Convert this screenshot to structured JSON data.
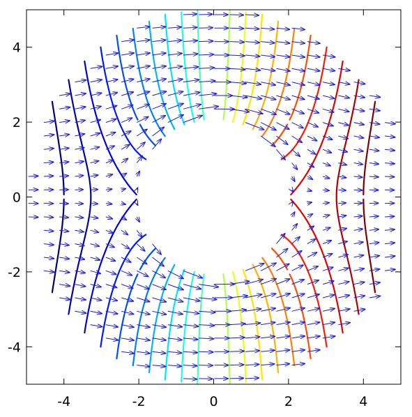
{
  "chart_data": {
    "type": "contour",
    "title": "",
    "xlabel": "",
    "ylabel": "",
    "xlim": [
      -5,
      5
    ],
    "ylim": [
      -5,
      5
    ],
    "grid": false,
    "legend": "none",
    "x_ticks": [
      "-4",
      "-2",
      "0",
      "2",
      "4"
    ],
    "y_ticks": [
      "-4",
      "-2",
      "0",
      "2",
      "4"
    ],
    "x_tick_values": [
      -4,
      -2,
      0,
      2,
      4
    ],
    "y_tick_values": [
      -4,
      -2,
      0,
      2,
      4
    ],
    "hole_radius": 2,
    "domain_radius": 5,
    "contour_levels": [
      -5,
      -4.5,
      -4,
      -3.5,
      -3,
      -2.5,
      -2,
      -1.5,
      -1,
      -0.5,
      0,
      0.5,
      1,
      1.5,
      2,
      2.5,
      3,
      3.5,
      4,
      4.5,
      5
    ],
    "field_description": "potential contours and flow arrows around a circular hole",
    "colormap": [
      "#00007f",
      "#0000ff",
      "#007fff",
      "#00ffff",
      "#7fff7f",
      "#ffff00",
      "#ff7f00",
      "#ff0000",
      "#7f0000"
    ],
    "arrow_color": "#1a1adc",
    "axis_color": "#000000"
  }
}
